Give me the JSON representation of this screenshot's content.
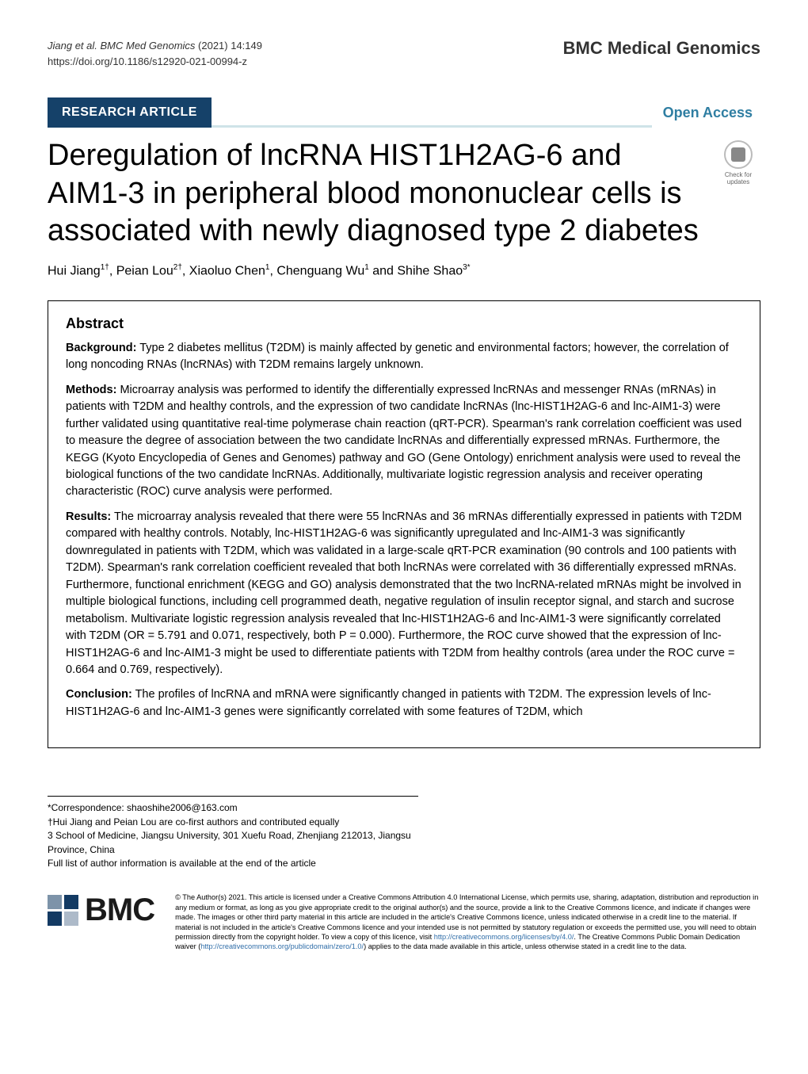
{
  "header": {
    "citation_authors": "Jiang et al. BMC Med Genomics",
    "citation_issue": "(2021) 14:149",
    "doi": "https://doi.org/10.1186/s12920-021-00994-z",
    "journal_brand": "BMC Medical Genomics"
  },
  "banner": {
    "badge": "RESEARCH ARTICLE",
    "open_access": "Open Access"
  },
  "title": "Deregulation of lncRNA HIST1H2AG-6 and AIM1-3 in peripheral blood mononuclear cells is associated with newly diagnosed type 2 diabetes",
  "check_updates_label": "Check for updates",
  "authors_html": "Hui Jiang<sup>1†</sup>, Peian Lou<sup>2†</sup>, Xiaoluo Chen<sup>1</sup>, Chenguang Wu<sup>1</sup> and Shihe Shao<sup>3*</sup>",
  "abstract": {
    "heading": "Abstract",
    "sections": [
      {
        "label": "Background:",
        "text": "Type 2 diabetes mellitus (T2DM) is mainly affected by genetic and environmental factors; however, the correlation of long noncoding RNAs (lncRNAs) with T2DM remains largely unknown."
      },
      {
        "label": "Methods:",
        "text": "Microarray analysis was performed to identify the differentially expressed lncRNAs and messenger RNAs (mRNAs) in patients with T2DM and healthy controls, and the expression of two candidate lncRNAs (lnc-HIST1H2AG-6 and lnc-AIM1-3) were further validated using quantitative real-time polymerase chain reaction (qRT-PCR). Spearman's rank correlation coefficient was used to measure the degree of association between the two candidate lncRNAs and differentially expressed mRNAs. Furthermore, the KEGG (Kyoto Encyclopedia of Genes and Genomes) pathway and GO (Gene Ontology) enrichment analysis were used to reveal the biological functions of the two candidate lncRNAs. Additionally, multivariate logistic regression analysis and receiver operating characteristic (ROC) curve analysis were performed."
      },
      {
        "label": "Results:",
        "text": "The microarray analysis revealed that there were 55 lncRNAs and 36 mRNAs differentially expressed in patients with T2DM compared with healthy controls. Notably, lnc-HIST1H2AG-6 was significantly upregulated and lnc-AIM1-3 was significantly downregulated in patients with T2DM, which was validated in a large-scale qRT-PCR examination (90 controls and 100 patients with T2DM). Spearman's rank correlation coefficient revealed that both lncRNAs were correlated with 36 differentially expressed mRNAs. Furthermore, functional enrichment (KEGG and GO) analysis demonstrated that the two lncRNA-related mRNAs might be involved in multiple biological functions, including cell programmed death, negative regulation of insulin receptor signal, and starch and sucrose metabolism. Multivariate logistic regression analysis revealed that lnc-HIST1H2AG-6 and lnc-AIM1-3 were significantly correlated with T2DM (OR = 5.791 and 0.071, respectively, both P = 0.000). Furthermore, the ROC curve showed that the expression of lnc-HIST1H2AG-6 and lnc-AIM1-3 might be used to differentiate patients with T2DM from healthy controls (area under the ROC curve = 0.664 and 0.769, respectively)."
      },
      {
        "label": "Conclusion:",
        "text": "The profiles of lncRNA and mRNA were significantly changed in patients with T2DM. The expression levels of lnc-HIST1H2AG-6 and lnc-AIM1-3 genes were significantly correlated with some features of T2DM, which"
      }
    ]
  },
  "footnotes": {
    "correspondence": "*Correspondence: shaoshihe2006@163.com",
    "equal": "†Hui Jiang and Peian Lou are co-first authors and contributed equally",
    "affiliation": "3 School of Medicine, Jiangsu University, 301 Xuefu Road, Zhenjiang 212013, Jiangsu Province, China",
    "full_list": "Full list of author information is available at the end of the article"
  },
  "bmc_logo_text": "BMC",
  "license": {
    "prefix": "© The Author(s) 2021. This article is licensed under a Creative Commons Attribution 4.0 International License, which permits use, sharing, adaptation, distribution and reproduction in any medium or format, as long as you give appropriate credit to the original author(s) and the source, provide a link to the Creative Commons licence, and indicate if changes were made. The images or other third party material in this article are included in the article's Creative Commons licence, unless indicated otherwise in a credit line to the material. If material is not included in the article's Creative Commons licence and your intended use is not permitted by statutory regulation or exceeds the permitted use, you will need to obtain permission directly from the copyright holder. To view a copy of this licence, visit ",
    "link1": "http://creativecommons.org/licenses/by/4.0/",
    "mid": ". The Creative Commons Public Domain Dedication waiver (",
    "link2": "http://creativecommons.org/publicdomain/zero/1.0/",
    "suffix": ") applies to the data made available in this article, unless otherwise stated in a credit line to the data."
  },
  "colors": {
    "badge_bg": "#154169",
    "open_access": "#2f7ea2",
    "link": "#2f6da8",
    "rule": "#cfe3e8"
  }
}
